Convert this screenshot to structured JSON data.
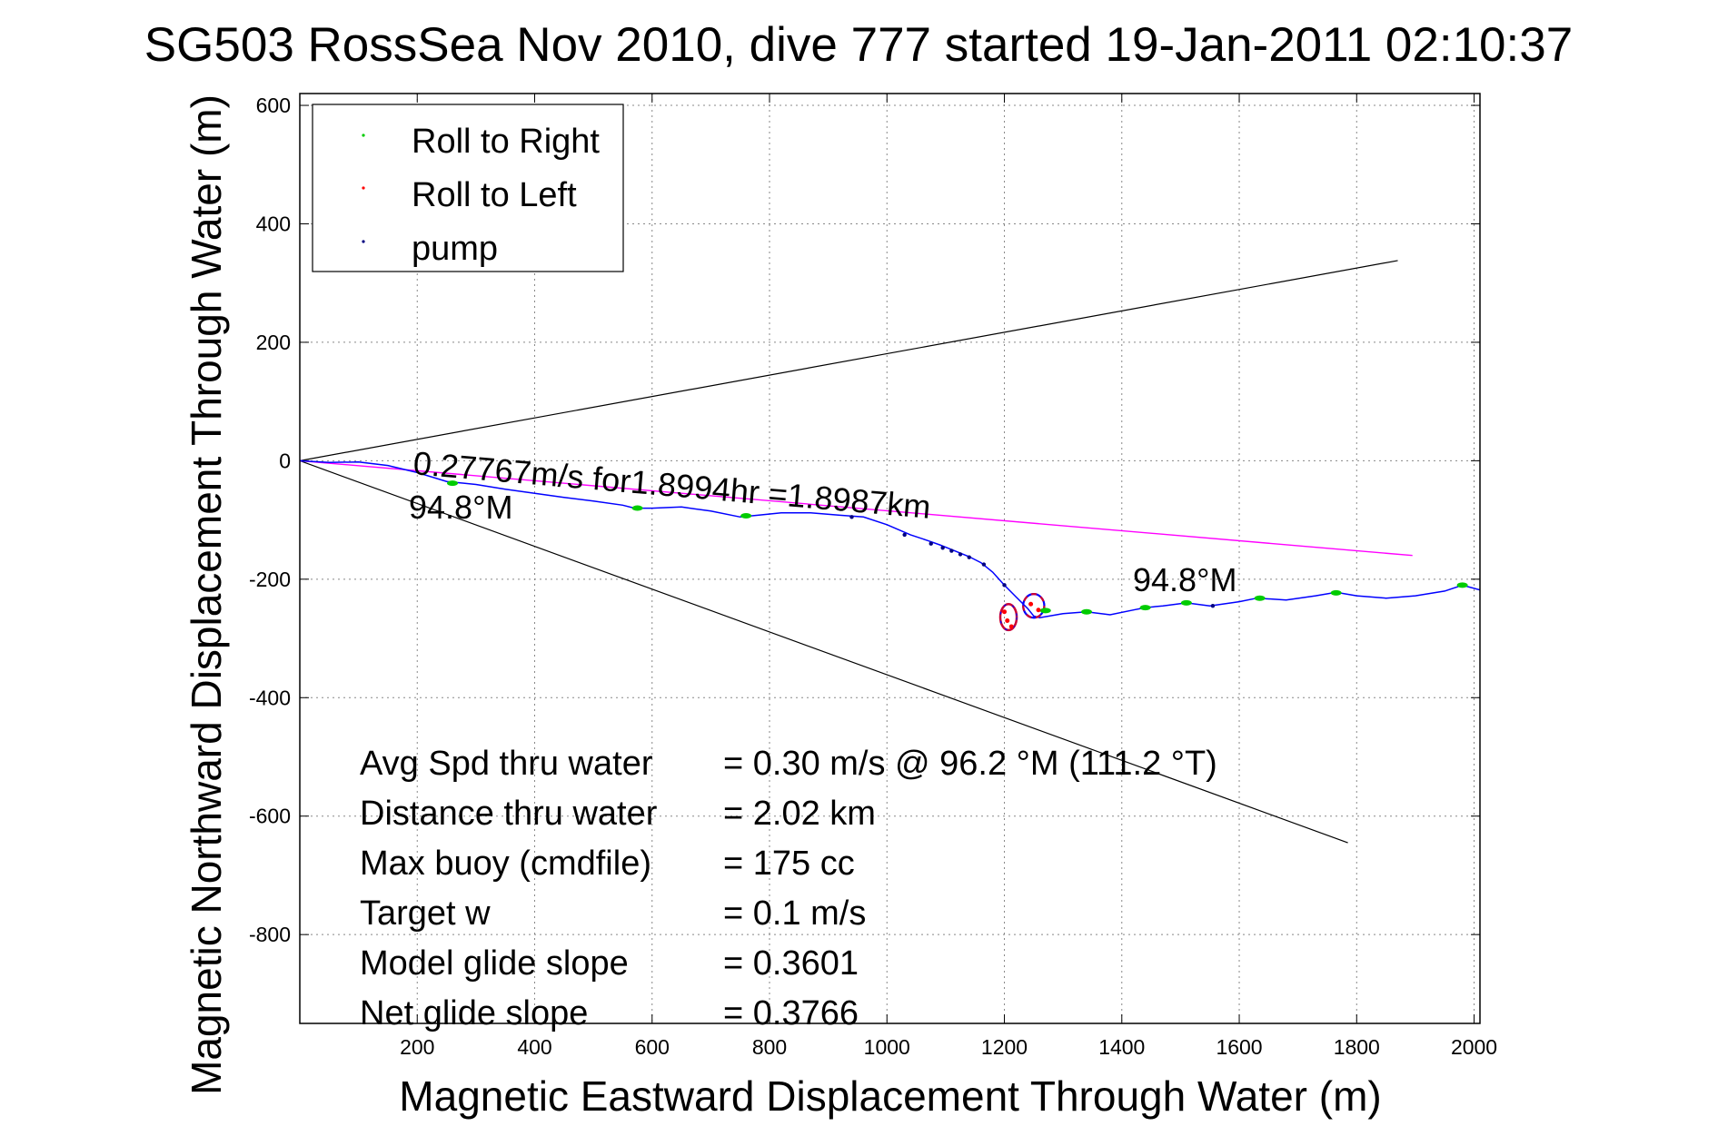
{
  "chart_data": {
    "type": "line",
    "title": "SG503 RossSea Nov 2010, dive 777 started 19-Jan-2011 02:10:37",
    "xlabel": "Magnetic Eastward Displacement Through Water (m)",
    "ylabel": "Magnetic Northward Displacement Through Water (m)",
    "xlim": [
      0,
      2010
    ],
    "ylim": [
      -950,
      620
    ],
    "xticks": [
      200,
      400,
      600,
      800,
      1000,
      1200,
      1400,
      1600,
      1800,
      2000
    ],
    "yticks": [
      600,
      400,
      200,
      0,
      -200,
      -400,
      -600,
      -800
    ],
    "grid": true,
    "legend_position": "top-left",
    "legend": [
      {
        "label": "Roll to Right",
        "color": "#00cc00"
      },
      {
        "label": "Roll to Left",
        "color": "#ff0000"
      },
      {
        "label": "pump",
        "color": "#000080"
      }
    ],
    "colors": {
      "track": "#0000ff",
      "heading": "#ff00ff",
      "cone": "#000000"
    },
    "track": [
      [
        0,
        0
      ],
      [
        50,
        -3
      ],
      [
        100,
        -2
      ],
      [
        150,
        -8
      ],
      [
        200,
        -20
      ],
      [
        250,
        -35
      ],
      [
        300,
        -40
      ],
      [
        350,
        -48
      ],
      [
        400,
        -55
      ],
      [
        450,
        -62
      ],
      [
        500,
        -68
      ],
      [
        550,
        -75
      ],
      [
        570,
        -80
      ],
      [
        600,
        -80
      ],
      [
        650,
        -78
      ],
      [
        700,
        -85
      ],
      [
        750,
        -95
      ],
      [
        780,
        -92
      ],
      [
        820,
        -88
      ],
      [
        870,
        -88
      ],
      [
        920,
        -92
      ],
      [
        960,
        -95
      ],
      [
        1000,
        -108
      ],
      [
        1040,
        -125
      ],
      [
        1070,
        -135
      ],
      [
        1090,
        -142
      ],
      [
        1110,
        -150
      ],
      [
        1140,
        -162
      ],
      [
        1160,
        -172
      ],
      [
        1180,
        -188
      ],
      [
        1200,
        -210
      ],
      [
        1220,
        -230
      ],
      [
        1240,
        -250
      ],
      [
        1250,
        -262
      ],
      [
        1260,
        -265
      ],
      [
        1300,
        -258
      ],
      [
        1340,
        -255
      ],
      [
        1380,
        -260
      ],
      [
        1420,
        -252
      ],
      [
        1440,
        -248
      ],
      [
        1470,
        -245
      ],
      [
        1510,
        -240
      ],
      [
        1550,
        -245
      ],
      [
        1600,
        -238
      ],
      [
        1630,
        -232
      ],
      [
        1680,
        -235
      ],
      [
        1730,
        -228
      ],
      [
        1765,
        -222
      ],
      [
        1800,
        -228
      ],
      [
        1850,
        -232
      ],
      [
        1900,
        -228
      ],
      [
        1950,
        -220
      ],
      [
        1980,
        -210
      ],
      [
        2010,
        -218
      ]
    ],
    "loop_right": {
      "cx": 1250,
      "cy": -245,
      "rx": 18,
      "ry": 20
    },
    "loop_left": {
      "cx": 1207,
      "cy": -264,
      "rx": 14,
      "ry": 22
    },
    "roll_right_points": [
      [
        260,
        -38
      ],
      [
        575,
        -80
      ],
      [
        760,
        -93
      ],
      [
        1270,
        -253
      ],
      [
        1340,
        -255
      ],
      [
        1440,
        -248
      ],
      [
        1510,
        -240
      ],
      [
        1635,
        -232
      ],
      [
        1765,
        -223
      ],
      [
        1980,
        -210
      ]
    ],
    "roll_left_points": [
      [
        1200,
        -255
      ],
      [
        1205,
        -270
      ],
      [
        1212,
        -280
      ],
      [
        1245,
        -242
      ],
      [
        1258,
        -252
      ]
    ],
    "pump_points": [
      [
        940,
        -95
      ],
      [
        1030,
        -125
      ],
      [
        1075,
        -140
      ],
      [
        1095,
        -147
      ],
      [
        1110,
        -152
      ],
      [
        1125,
        -158
      ],
      [
        1140,
        -163
      ],
      [
        1165,
        -175
      ],
      [
        1200,
        -210
      ],
      [
        1555,
        -245
      ]
    ],
    "heading_line": [
      [
        0,
        0
      ],
      [
        1895,
        -160
      ]
    ],
    "cone_lines": [
      [
        [
          0,
          0
        ],
        [
          1870,
          338
        ]
      ],
      [
        [
          0,
          0
        ],
        [
          1785,
          -645
        ]
      ]
    ],
    "annotations": {
      "speed_text": "0.27767m/s for1.8994hr =1.8987km",
      "heading_left": "94.8°M",
      "heading_right": "94.8°M"
    },
    "stats": [
      {
        "label": "Avg Spd thru water",
        "value": "=  0.30 m/s @  96.2 °M (111.2 °T)"
      },
      {
        "label": "Distance thru water",
        "value": "=  2.02 km"
      },
      {
        "label": "Max buoy (cmdfile)",
        "value": "= 175 cc"
      },
      {
        "label": "Target w",
        "value": "= 0.1 m/s"
      },
      {
        "label": "Model glide slope",
        "value": "= 0.3601"
      },
      {
        "label": "Net glide slope",
        "value": "= 0.3766"
      }
    ]
  }
}
